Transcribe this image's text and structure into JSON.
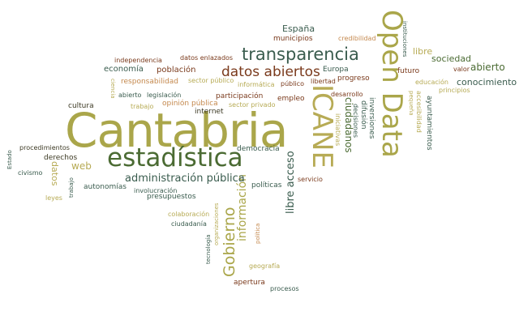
{
  "words": [
    {
      "text": "Cantabria",
      "color": "#aaa64a"
    },
    {
      "text": "estadística",
      "color": "#4b6b33"
    },
    {
      "text": "transparencia",
      "color": "#3a5c4e"
    },
    {
      "text": "Open Data",
      "color": "#aaa64a"
    },
    {
      "text": "ICANE",
      "color": "#b7ab55"
    },
    {
      "text": "datos abiertos",
      "color": "#7a3a1c"
    },
    {
      "text": "Gobierno",
      "color": "#aaa64a"
    },
    {
      "text": "información",
      "color": "#aaa64a"
    },
    {
      "text": "administración pública",
      "color": "#3a5c4e"
    },
    {
      "text": "libre acceso",
      "color": "#3a5c4e"
    },
    {
      "text": "España",
      "color": "#3a5c4e"
    },
    {
      "text": "municipios",
      "color": "#7a3a1c"
    },
    {
      "text": "credibilidad",
      "color": "#c4884d"
    },
    {
      "text": "instituciones",
      "color": "#3a5c4e"
    },
    {
      "text": "libre",
      "color": "#b7ab55"
    },
    {
      "text": "sociedad",
      "color": "#4b6b33"
    },
    {
      "text": "abierto",
      "color": "#4b6b33"
    },
    {
      "text": "valor",
      "color": "#7a3a1c"
    },
    {
      "text": "conocimiento",
      "color": "#3a5c4e"
    },
    {
      "text": "educación",
      "color": "#b7ab55"
    },
    {
      "text": "principios",
      "color": "#b7ab55"
    },
    {
      "text": "futuro",
      "color": "#7a3a1c"
    },
    {
      "text": "Europa",
      "color": "#3a5c4e"
    },
    {
      "text": "progreso",
      "color": "#7a3a1c"
    },
    {
      "text": "libertad",
      "color": "#7a3a1c"
    },
    {
      "text": "independencia",
      "color": "#7a3a1c"
    },
    {
      "text": "datos enlazados",
      "color": "#7a3a1c"
    },
    {
      "text": "economía",
      "color": "#3a5c4e"
    },
    {
      "text": "población",
      "color": "#7a3a1c"
    },
    {
      "text": "responsabilidad",
      "color": "#c4884d"
    },
    {
      "text": "sector público",
      "color": "#b7ab55"
    },
    {
      "text": "informática",
      "color": "#b7ab55"
    },
    {
      "text": "público",
      "color": "#7a3a1c"
    },
    {
      "text": "ciencia",
      "color": "#b7ab55"
    },
    {
      "text": "abierto",
      "color": "#3a5c4e"
    },
    {
      "text": "legislación",
      "color": "#3a5c4e"
    },
    {
      "text": "participación",
      "color": "#7a3a1c"
    },
    {
      "text": "empleo",
      "color": "#7a3a1c"
    },
    {
      "text": "desarrollo",
      "color": "#7a3a1c"
    },
    {
      "text": "cultura",
      "color": "#3d3a24"
    },
    {
      "text": "trabajo",
      "color": "#b7ab55"
    },
    {
      "text": "opinión pública",
      "color": "#c4884d"
    },
    {
      "text": "sector privado",
      "color": "#b7ab55"
    },
    {
      "text": "internet",
      "color": "#3d3a24"
    },
    {
      "text": "inversiones",
      "color": "#3a5c4e"
    },
    {
      "text": "difusión",
      "color": "#3a5c4e"
    },
    {
      "text": "decisiones",
      "color": "#3a5c4e"
    },
    {
      "text": "ciudadanos",
      "color": "#4b6b33"
    },
    {
      "text": "iniciativas",
      "color": "#b7ab55"
    },
    {
      "text": "accesibilidad",
      "color": "#b7ab55"
    },
    {
      "text": "pequeña",
      "color": "#b7ab55"
    },
    {
      "text": "ayuntamientos",
      "color": "#3a5c4e"
    },
    {
      "text": "procedimientos",
      "color": "#3d3a24"
    },
    {
      "text": "derechos",
      "color": "#3d3a24"
    },
    {
      "text": "Estado",
      "color": "#3a5c4e"
    },
    {
      "text": "civismo",
      "color": "#3a5c4e"
    },
    {
      "text": "datos",
      "color": "#b7ab55"
    },
    {
      "text": "web",
      "color": "#b7ab55"
    },
    {
      "text": "trabajo",
      "color": "#3a5c4e"
    },
    {
      "text": "leyes",
      "color": "#b7ab55"
    },
    {
      "text": "autonomías",
      "color": "#3a5c4e"
    },
    {
      "text": "involucración",
      "color": "#3a5c4e"
    },
    {
      "text": "presupuestos",
      "color": "#3a5c4e"
    },
    {
      "text": "democracia",
      "color": "#3a5c4e"
    },
    {
      "text": "políticas",
      "color": "#3a5c4e"
    },
    {
      "text": "servicio",
      "color": "#7a3a1c"
    },
    {
      "text": "colaboración",
      "color": "#b7ab55"
    },
    {
      "text": "ciudadanía",
      "color": "#3a5c4e"
    },
    {
      "text": "organizaciones",
      "color": "#b7ab55"
    },
    {
      "text": "tecnología",
      "color": "#3a5c4e"
    },
    {
      "text": "política",
      "color": "#c4884d"
    },
    {
      "text": "geografía",
      "color": "#b7ab55"
    },
    {
      "text": "apertura",
      "color": "#7a3a1c"
    },
    {
      "text": "procesos",
      "color": "#3a5c4e"
    }
  ]
}
